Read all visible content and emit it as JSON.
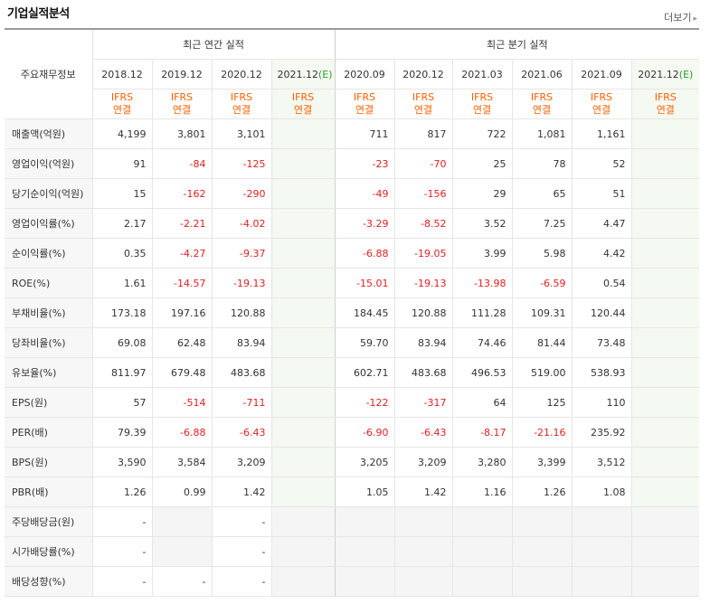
{
  "title": "기업실적분석",
  "more_label": "더보기",
  "header": {
    "corner_label": "주요재무정보",
    "annual_label": "최근 연간 실적",
    "quarter_label": "최근 분기 실적",
    "annual_periods": [
      "2018.12",
      "2019.12",
      "2020.12",
      "2021.12(E)"
    ],
    "quarter_periods": [
      "2020.09",
      "2020.12",
      "2021.03",
      "2021.06",
      "2021.09",
      "2021.12(E)"
    ],
    "ifrs_top": "IFRS",
    "ifrs_bottom": "연결"
  },
  "rows": [
    {
      "label": "매출액(억원)",
      "annual": [
        "4,199",
        "3,801",
        "3,101",
        ""
      ],
      "quarter": [
        "711",
        "817",
        "722",
        "1,081",
        "1,161",
        ""
      ]
    },
    {
      "label": "영업이익(억원)",
      "annual": [
        "91",
        "-84",
        "-125",
        ""
      ],
      "quarter": [
        "-23",
        "-70",
        "25",
        "78",
        "52",
        ""
      ]
    },
    {
      "label": "당기순이익(억원)",
      "annual": [
        "15",
        "-162",
        "-290",
        ""
      ],
      "quarter": [
        "-49",
        "-156",
        "29",
        "65",
        "51",
        ""
      ]
    },
    {
      "label": "영업이익률(%)",
      "annual": [
        "2.17",
        "-2.21",
        "-4.02",
        ""
      ],
      "quarter": [
        "-3.29",
        "-8.52",
        "3.52",
        "7.25",
        "4.47",
        ""
      ]
    },
    {
      "label": "순이익률(%)",
      "annual": [
        "0.35",
        "-4.27",
        "-9.37",
        ""
      ],
      "quarter": [
        "-6.88",
        "-19.05",
        "3.99",
        "5.98",
        "4.42",
        ""
      ]
    },
    {
      "label": "ROE(%)",
      "annual": [
        "1.61",
        "-14.57",
        "-19.13",
        ""
      ],
      "quarter": [
        "-15.01",
        "-19.13",
        "-13.98",
        "-6.59",
        "0.54",
        ""
      ]
    },
    {
      "label": "부채비율(%)",
      "annual": [
        "173.18",
        "197.16",
        "120.88",
        ""
      ],
      "quarter": [
        "184.45",
        "120.88",
        "111.28",
        "109.31",
        "120.44",
        ""
      ]
    },
    {
      "label": "당좌비율(%)",
      "annual": [
        "69.08",
        "62.48",
        "83.94",
        ""
      ],
      "quarter": [
        "59.70",
        "83.94",
        "74.46",
        "81.44",
        "73.48",
        ""
      ]
    },
    {
      "label": "유보율(%)",
      "annual": [
        "811.97",
        "679.48",
        "483.68",
        ""
      ],
      "quarter": [
        "602.71",
        "483.68",
        "496.53",
        "519.00",
        "538.93",
        ""
      ]
    },
    {
      "label": "EPS(원)",
      "annual": [
        "57",
        "-514",
        "-711",
        ""
      ],
      "quarter": [
        "-122",
        "-317",
        "64",
        "125",
        "110",
        ""
      ]
    },
    {
      "label": "PER(배)",
      "annual": [
        "79.39",
        "-6.88",
        "-6.43",
        ""
      ],
      "quarter": [
        "-6.90",
        "-6.43",
        "-8.17",
        "-21.16",
        "235.92",
        ""
      ]
    },
    {
      "label": "BPS(원)",
      "annual": [
        "3,590",
        "3,584",
        "3,209",
        ""
      ],
      "quarter": [
        "3,205",
        "3,209",
        "3,280",
        "3,399",
        "3,512",
        ""
      ]
    },
    {
      "label": "PBR(배)",
      "annual": [
        "1.26",
        "0.99",
        "1.42",
        ""
      ],
      "quarter": [
        "1.05",
        "1.42",
        "1.16",
        "1.26",
        "1.08",
        ""
      ]
    },
    {
      "label": "주당배당금(원)",
      "annual": [
        "-",
        "",
        "-",
        ""
      ],
      "quarter": [
        "",
        "",
        "",
        "",
        "",
        ""
      ]
    },
    {
      "label": "시가배당률(%)",
      "annual": [
        "-",
        "",
        "-",
        ""
      ],
      "quarter": [
        "",
        "",
        "",
        "",
        "",
        ""
      ]
    },
    {
      "label": "배당성향(%)",
      "annual": [
        "-",
        "-",
        "-",
        ""
      ],
      "quarter": [
        "",
        "",
        "",
        "",
        "",
        ""
      ]
    }
  ]
}
